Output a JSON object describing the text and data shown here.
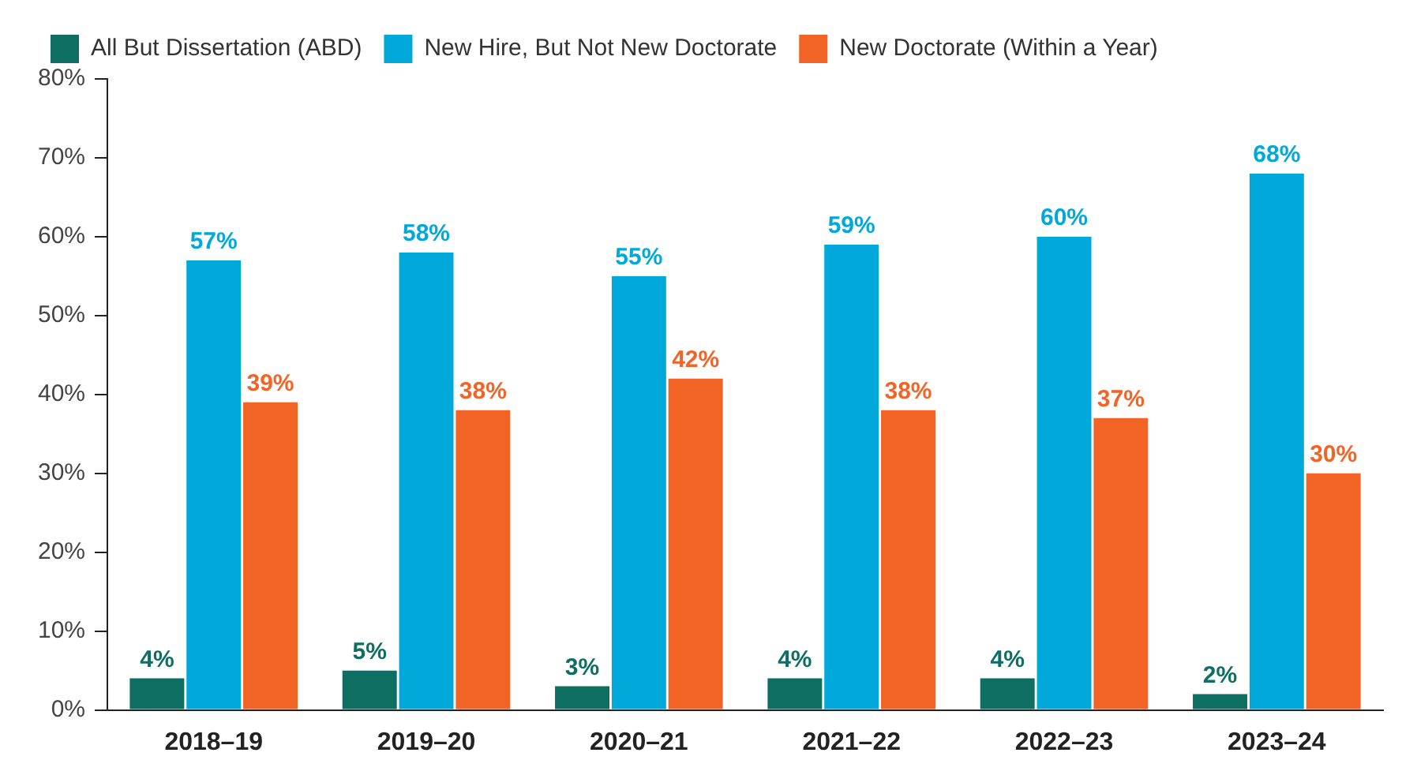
{
  "chart_data": {
    "type": "bar",
    "categories": [
      "2018–19",
      "2019–20",
      "2020–21",
      "2021–22",
      "2022–23",
      "2023–24"
    ],
    "series": [
      {
        "name": "All But Dissertation (ABD)",
        "color": "#0e6e62",
        "values": [
          4,
          5,
          3,
          4,
          4,
          2
        ],
        "value_labels": [
          "4%",
          "5%",
          "3%",
          "4%",
          "4%",
          "2%"
        ]
      },
      {
        "name": "New Hire, But Not New Doctorate",
        "color": "#00a9d9",
        "values": [
          57,
          58,
          55,
          59,
          60,
          68
        ],
        "value_labels": [
          "57%",
          "58%",
          "55%",
          "59%",
          "60%",
          "68%"
        ]
      },
      {
        "name": "New Doctorate (Within a Year)",
        "color": "#f26426",
        "values": [
          39,
          38,
          42,
          38,
          37,
          30
        ],
        "value_labels": [
          "39%",
          "38%",
          "42%",
          "38%",
          "37%",
          "30%"
        ]
      }
    ],
    "ylim": [
      0,
      80
    ],
    "yticks": [
      {
        "value": 0,
        "label": "0%"
      },
      {
        "value": 10,
        "label": "10%"
      },
      {
        "value": 20,
        "label": "20%"
      },
      {
        "value": 30,
        "label": "30%"
      },
      {
        "value": 40,
        "label": "40%"
      },
      {
        "value": 50,
        "label": "50%"
      },
      {
        "value": 60,
        "label": "60%"
      },
      {
        "value": 70,
        "label": "70%"
      },
      {
        "value": 80,
        "label": "80%"
      }
    ],
    "grid": false,
    "legend": "top left"
  }
}
